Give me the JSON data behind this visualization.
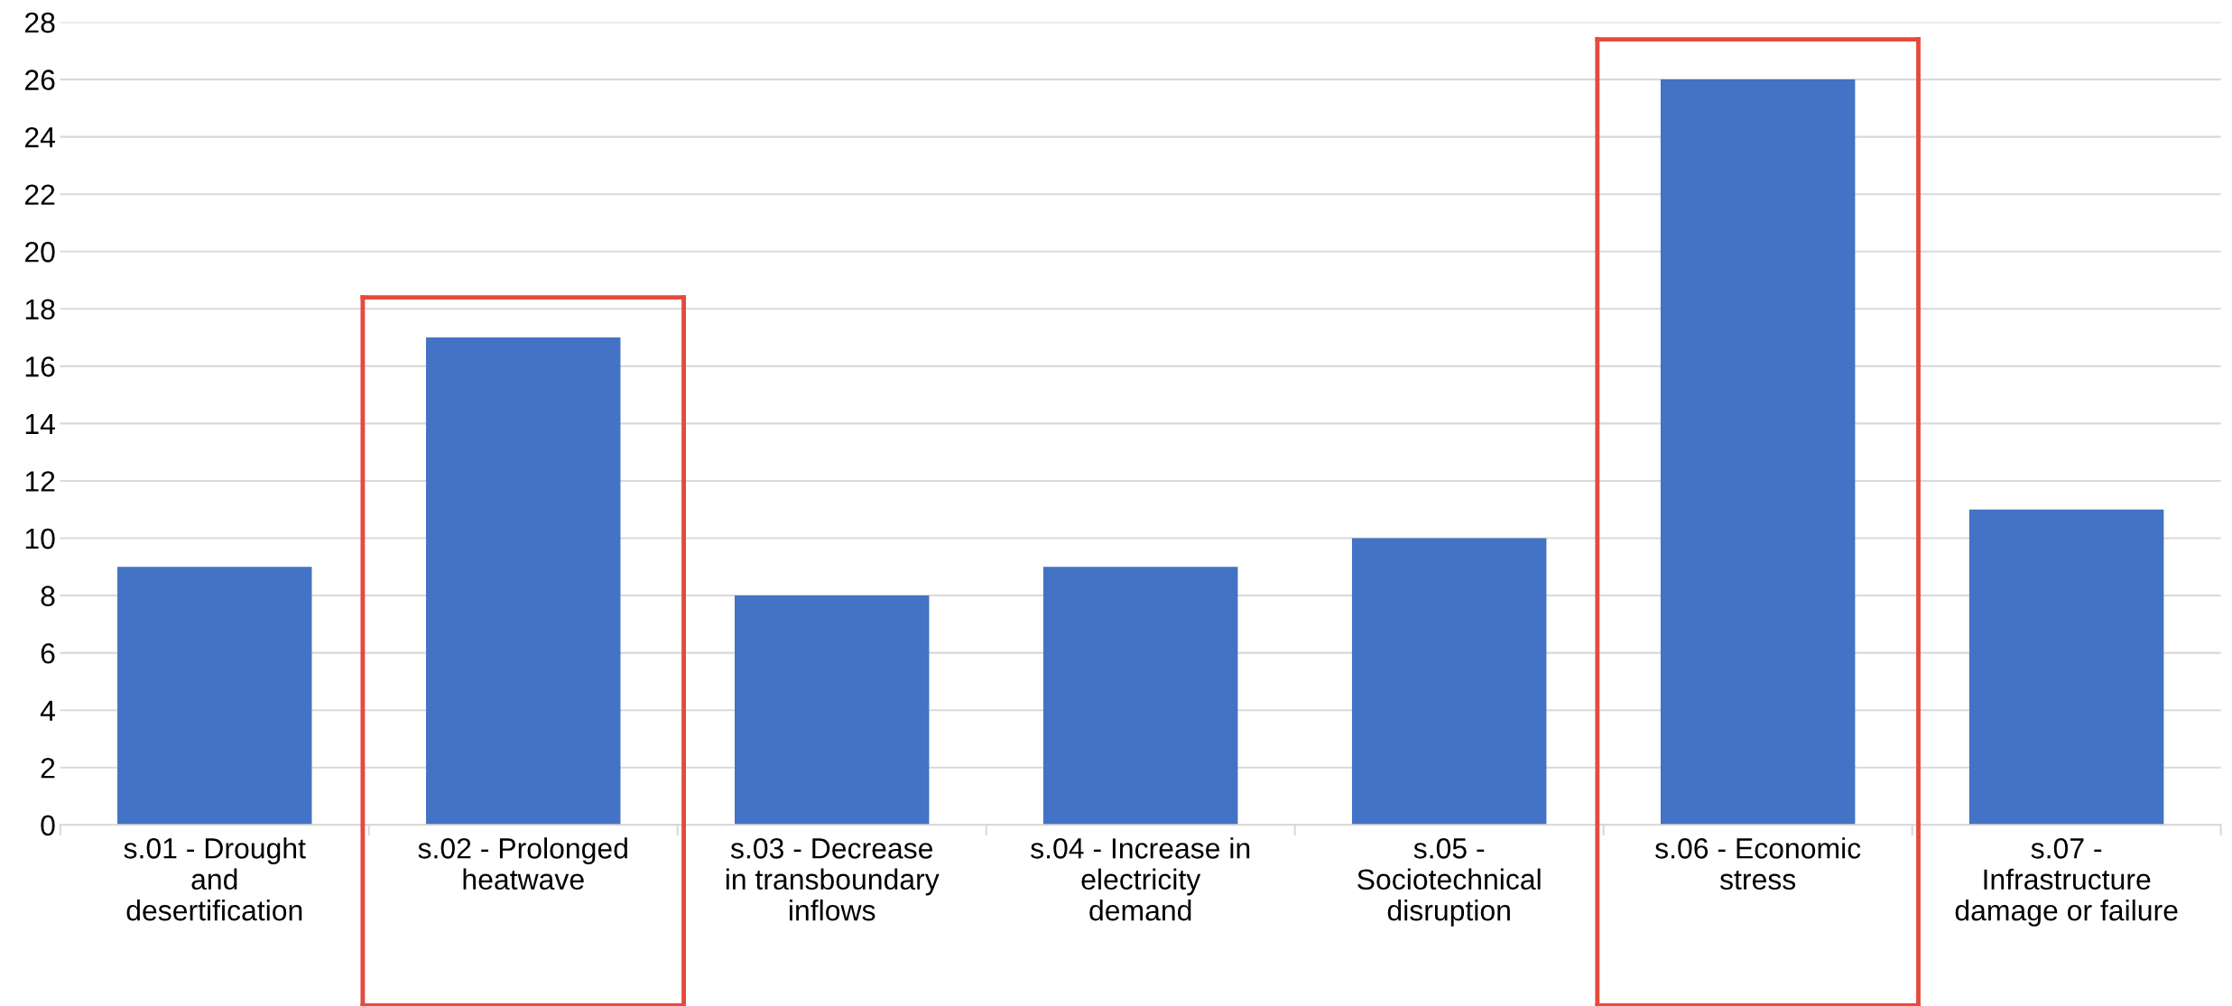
{
  "chart_data": {
    "type": "bar",
    "categories": [
      "s.01 - Drought\nand\ndesertification",
      "s.02 - Prolonged\nheatwave",
      "s.03 - Decrease\nin transboundary\ninflows",
      "s.04 - Increase in\nelectricity\ndemand",
      "s.05 -\nSociotechnical\ndisruption",
      "s.06 - Economic\nstress",
      "s.07 -\nInfrastructure\ndamage or failure"
    ],
    "values": [
      9,
      17,
      8,
      9,
      10,
      26,
      11
    ],
    "color": "#4472c4",
    "ylim": [
      0,
      28
    ],
    "yticks": [
      0,
      2,
      4,
      6,
      8,
      10,
      12,
      14,
      16,
      18,
      20,
      22,
      24,
      26,
      28
    ],
    "grid": "y"
  }
}
